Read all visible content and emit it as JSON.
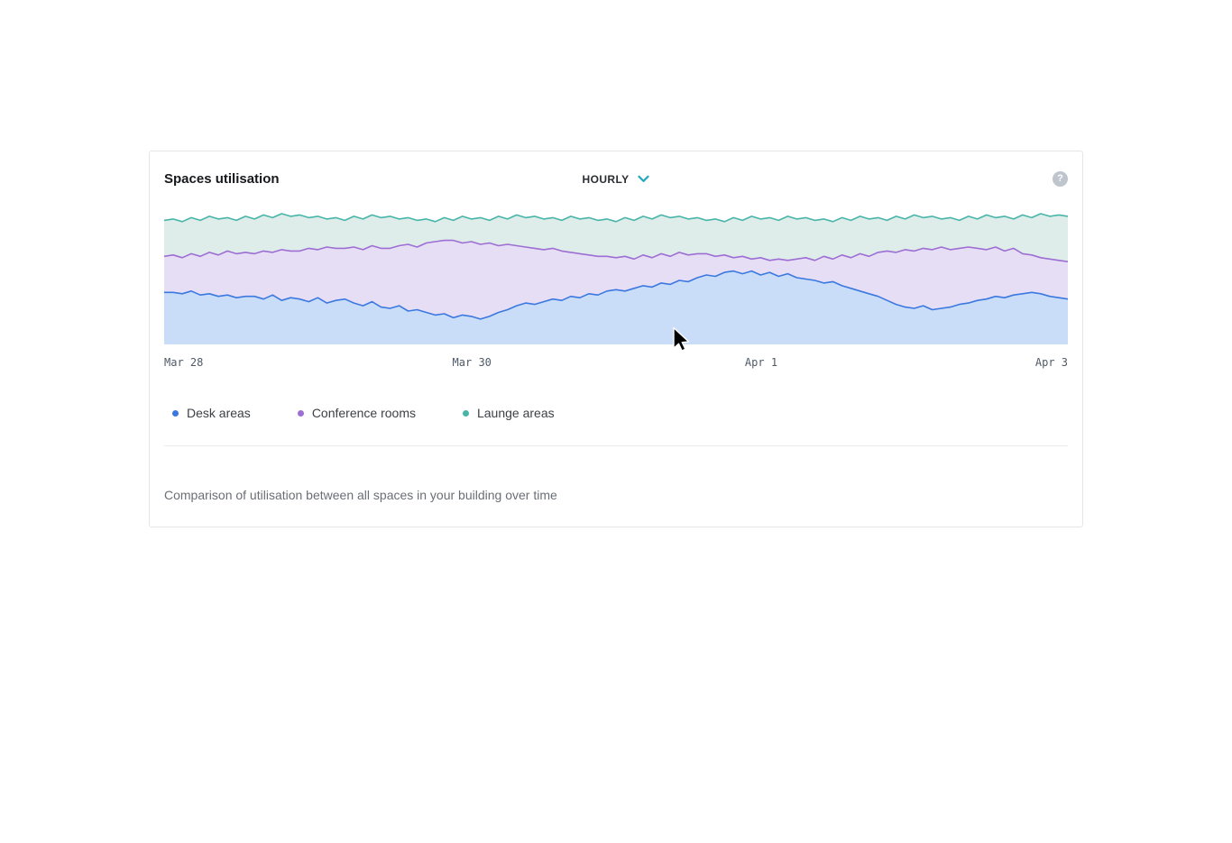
{
  "card": {
    "title": "Spaces utilisation",
    "dropdown": {
      "value": "HOURLY",
      "accent": "#25a8be"
    },
    "help": {
      "glyph": "?"
    },
    "footer": "Comparison of utilisation between all spaces in your building over time"
  },
  "chart_data": {
    "type": "area",
    "title": "Spaces utilisation",
    "interval": "HOURLY",
    "x_tick_labels": [
      "Mar 28",
      "Mar 30",
      "Apr 1",
      "Apr 3"
    ],
    "ylim": [
      0,
      100
    ],
    "grid": false,
    "legend_position": "bottom",
    "series": [
      {
        "name": "Desk areas",
        "line_color": "#3b78e0",
        "fill_color": "#c9ddf8",
        "values": [
          39,
          39,
          38,
          40,
          37,
          38,
          36,
          37,
          35,
          36,
          36,
          34,
          37,
          33,
          35,
          34,
          32,
          35,
          31,
          33,
          34,
          31,
          29,
          32,
          28,
          27,
          29,
          25,
          26,
          24,
          22,
          23,
          20,
          22,
          21,
          19,
          21,
          24,
          26,
          29,
          31,
          30,
          32,
          34,
          33,
          36,
          35,
          38,
          37,
          40,
          41,
          40,
          42,
          44,
          43,
          46,
          45,
          48,
          47,
          50,
          52,
          51,
          54,
          55,
          53,
          55,
          52,
          54,
          51,
          53,
          50,
          49,
          48,
          46,
          47,
          44,
          42,
          40,
          38,
          36,
          33,
          30,
          28,
          27,
          29,
          26,
          27,
          28,
          30,
          31,
          33,
          34,
          36,
          35,
          37,
          38,
          39,
          38,
          36,
          35,
          34
        ]
      },
      {
        "name": "Conference rooms",
        "line_color": "#9d6ed3",
        "fill_color": "#e6def4",
        "values": [
          66,
          67,
          65,
          68,
          66,
          69,
          67,
          70,
          68,
          69,
          68,
          70,
          69,
          71,
          70,
          70,
          72,
          71,
          73,
          72,
          72,
          73,
          71,
          74,
          72,
          72,
          74,
          75,
          73,
          76,
          77,
          78,
          78,
          76,
          77,
          75,
          76,
          74,
          75,
          74,
          73,
          72,
          71,
          72,
          70,
          69,
          68,
          67,
          66,
          66,
          65,
          66,
          64,
          67,
          65,
          68,
          66,
          69,
          67,
          68,
          68,
          66,
          67,
          65,
          66,
          64,
          65,
          63,
          64,
          63,
          64,
          65,
          63,
          66,
          64,
          67,
          65,
          68,
          66,
          69,
          70,
          69,
          71,
          70,
          72,
          71,
          73,
          71,
          72,
          73,
          72,
          71,
          73,
          70,
          72,
          68,
          67,
          65,
          64,
          63,
          62
        ]
      },
      {
        "name": "Launge areas",
        "line_color": "#48b5a9",
        "fill_color": "#deedea",
        "values": [
          93,
          94,
          92,
          95,
          93,
          96,
          94,
          95,
          93,
          96,
          94,
          97,
          95,
          98,
          96,
          97,
          95,
          96,
          94,
          95,
          93,
          96,
          94,
          97,
          95,
          96,
          94,
          95,
          93,
          94,
          92,
          95,
          93,
          96,
          94,
          95,
          93,
          96,
          94,
          97,
          95,
          96,
          94,
          95,
          93,
          96,
          94,
          95,
          93,
          94,
          92,
          95,
          93,
          96,
          94,
          97,
          95,
          96,
          94,
          95,
          93,
          94,
          92,
          95,
          93,
          96,
          94,
          95,
          93,
          96,
          94,
          95,
          93,
          94,
          92,
          95,
          93,
          96,
          94,
          95,
          93,
          96,
          94,
          97,
          95,
          96,
          94,
          95,
          93,
          96,
          94,
          97,
          95,
          96,
          94,
          97,
          95,
          98,
          96,
          97,
          96
        ]
      }
    ]
  }
}
